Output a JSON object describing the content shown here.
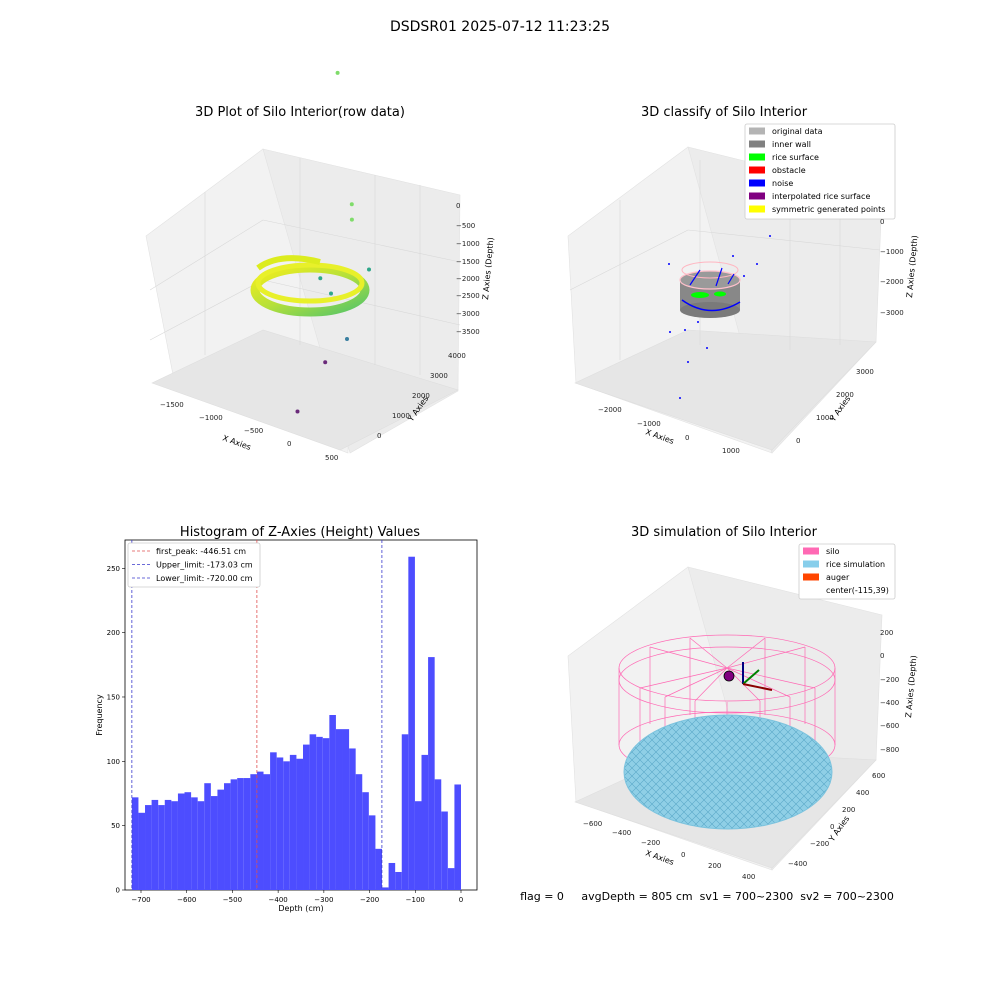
{
  "figure_title": "DSDSR01 2025-07-12 11:23:25",
  "footer_text": "flag = 0     avgDepth = 805 cm  sv1 = 700~2300  sv2 = 700~2300",
  "colors": {
    "bar": "#4d4dff",
    "first_peak": "#e05050",
    "limits": "#3a3acc",
    "original": "#b4b4b4",
    "inner_wall": "#808080",
    "rice_surface": "#00ff00",
    "obstacle": "#ff0000",
    "noise": "#0000ff",
    "interpolated": "#800080",
    "symmetric": "#ffff00",
    "silo": "#ff69b4",
    "rice_sim": "#87ceeb",
    "auger": "#ff4500"
  },
  "chart_data": [
    {
      "type": "scatter",
      "title": "3D Plot of Silo Interior(row data)",
      "xlabel": "X Axies",
      "ylabel": "Y Axies",
      "zlabel": "Z Axies (Depth)",
      "x_ticks": [
        "−1500",
        "−1000",
        "−500",
        "0",
        "500"
      ],
      "y_ticks": [
        "0",
        "1000",
        "2000",
        "3000",
        "4000"
      ],
      "z_ticks": [
        "0",
        "−500",
        "−1000",
        "−1500",
        "−2000",
        "−2500",
        "−3000",
        "−3500"
      ],
      "outlier_points": [
        {
          "x": -1300,
          "y": 2600,
          "z": -300
        },
        {
          "x": -150,
          "y": 600,
          "z": -200
        },
        {
          "x": -200,
          "y": 700,
          "z": -600
        },
        {
          "x": -900,
          "y": 1500,
          "z": -2800
        },
        {
          "x": -750,
          "y": 1400,
          "z": -2900
        },
        {
          "x": -500,
          "y": 1600,
          "z": -2500
        },
        {
          "x": -500,
          "y": 1200,
          "z": -3400
        },
        {
          "x": -600,
          "y": 1000,
          "z": -3700
        },
        {
          "x": -500,
          "y": 300,
          "z": -3900
        }
      ]
    },
    {
      "type": "scatter",
      "title": "3D classify of Silo Interior",
      "xlabel": "X Axies",
      "ylabel": "Y Axies",
      "zlabel": "Z Axies (Depth)",
      "x_ticks": [
        "−2000",
        "−1000",
        "0",
        "1000"
      ],
      "y_ticks": [
        "0",
        "1000",
        "2000",
        "3000"
      ],
      "z_ticks": [
        "0",
        "−1000",
        "−2000",
        "−3000"
      ],
      "legend": [
        "original data",
        "inner wall",
        "rice surface",
        "obstacle",
        "noise",
        "interpolated rice surface",
        "symmetric generated points"
      ]
    },
    {
      "type": "bar",
      "title": "Histogram of Z-Axies (Height) Values",
      "xlabel": "Depth (cm)",
      "ylabel": "Frequency",
      "xlim": [
        -735,
        35
      ],
      "ylim": [
        0,
        272
      ],
      "x_ticks": [
        -700,
        -600,
        -500,
        -400,
        -300,
        -200,
        -100,
        0
      ],
      "y_ticks": [
        0,
        50,
        100,
        150,
        200,
        250
      ],
      "bin_start": -720,
      "bin_width": 14.4,
      "values": [
        72,
        60,
        66,
        70,
        66,
        70,
        69,
        75,
        76,
        72,
        69,
        83,
        73,
        78,
        83,
        86,
        87,
        87,
        90,
        92,
        90,
        107,
        103,
        100,
        105,
        102,
        113,
        121,
        119,
        118,
        136,
        125,
        125,
        110,
        90,
        76,
        58,
        32,
        2,
        21,
        14,
        121,
        259,
        69,
        105,
        181,
        86,
        61,
        17,
        82
      ],
      "lines": [
        {
          "label": "first_peak: -446.51 cm",
          "x": -446.51,
          "style": "first_peak"
        },
        {
          "label": "Upper_limit: -173.03 cm",
          "x": -173.03,
          "style": "limits"
        },
        {
          "label": "Lower_limit: -720.00 cm",
          "x": -720.0,
          "style": "limits"
        }
      ]
    },
    {
      "type": "scatter",
      "title": "3D simulation of Silo Interior",
      "xlabel": "X Axies",
      "ylabel": "Y Axies",
      "zlabel": "Z Axies (Depth)",
      "x_ticks": [
        "−600",
        "−400",
        "−200",
        "0",
        "200",
        "400"
      ],
      "y_ticks": [
        "−400",
        "−200",
        "0",
        "200",
        "400",
        "600"
      ],
      "z_ticks": [
        "200",
        "0",
        "−200",
        "−400",
        "−600",
        "−800"
      ],
      "legend": [
        "silo",
        "rice simulation",
        "auger",
        "center(-115,39)"
      ]
    }
  ]
}
